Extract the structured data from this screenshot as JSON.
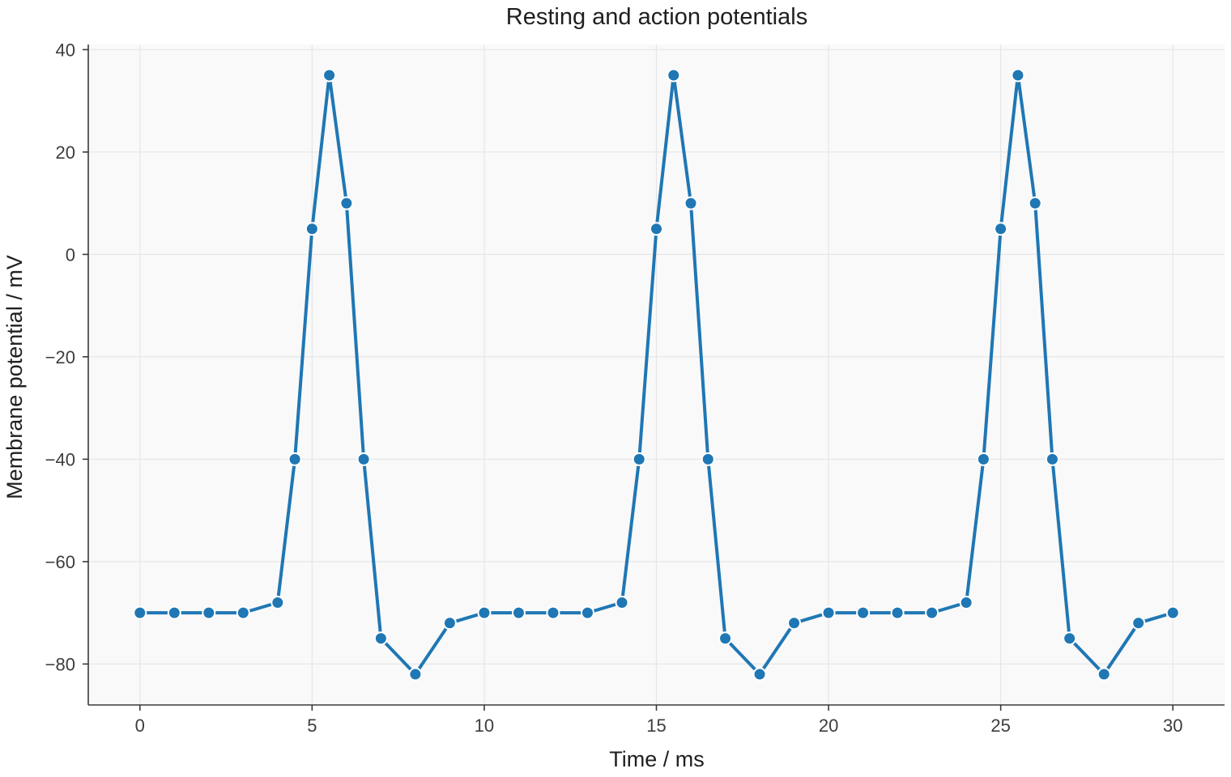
{
  "chart_data": {
    "type": "line",
    "title": "Resting and action potentials",
    "xlabel": "Time / ms",
    "ylabel": "Membrane potential / mV",
    "xlim": [
      -1.5,
      31.5
    ],
    "ylim": [
      -88,
      41
    ],
    "xticks": [
      0,
      5,
      10,
      15,
      20,
      25,
      30
    ],
    "yticks": [
      40,
      20,
      0,
      -20,
      -40,
      -60,
      -80
    ],
    "xtick_labels": [
      "0",
      "5",
      "10",
      "15",
      "20",
      "25",
      "30"
    ],
    "ytick_labels": [
      "40",
      "20",
      "0",
      "−20",
      "−40",
      "−60",
      "−80"
    ],
    "grid": true,
    "colors": {
      "series": "#1f77b4",
      "plot_background": "#f9f9f9"
    },
    "series": [
      {
        "x": [
          0,
          1,
          2,
          3,
          4,
          4.5,
          5,
          5.5,
          6,
          6.5,
          7,
          8,
          9,
          10,
          11,
          12,
          13,
          14,
          14.5,
          15,
          15.5,
          16,
          16.5,
          17,
          18,
          19,
          20,
          21,
          22,
          23,
          24,
          24.5,
          25,
          25.5,
          26,
          26.5,
          27,
          28,
          29,
          30
        ],
        "values": [
          -70,
          -70,
          -70,
          -70,
          -68,
          -40,
          5,
          35,
          10,
          -40,
          -75,
          -82,
          -72,
          -70,
          -70,
          -70,
          -70,
          -68,
          -40,
          5,
          35,
          10,
          -40,
          -75,
          -82,
          -72,
          -70,
          -70,
          -70,
          -70,
          -68,
          -40,
          5,
          35,
          10,
          -40,
          -75,
          -82,
          -72,
          -70
        ]
      }
    ]
  }
}
